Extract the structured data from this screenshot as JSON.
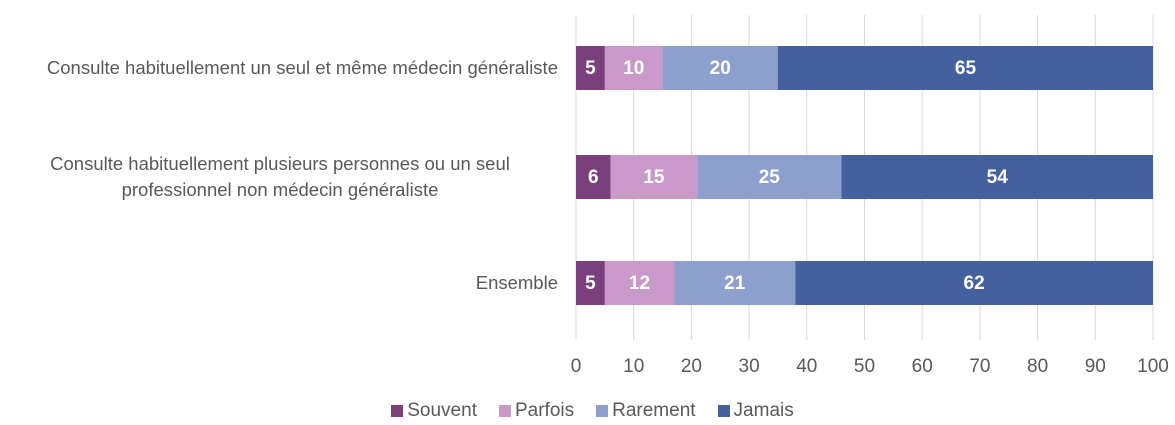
{
  "chart_data": {
    "type": "stacked_barh",
    "categories": [
      "Consulte habituellement un seul et même médecin généraliste",
      "Consulte habituellement plusieurs personnes ou un seul professionnel non médecin généraliste",
      "Ensemble"
    ],
    "series": [
      {
        "name": "Souvent",
        "color": "#7b3f7b",
        "values": [
          5,
          6,
          5
        ]
      },
      {
        "name": "Parfois",
        "color": "#c99ac9",
        "values": [
          10,
          15,
          12
        ]
      },
      {
        "name": "Rarement",
        "color": "#8d9fcd",
        "values": [
          20,
          25,
          21
        ]
      },
      {
        "name": "Jamais",
        "color": "#45609e",
        "values": [
          65,
          54,
          62
        ]
      }
    ],
    "xlim": [
      0,
      100
    ],
    "xticks": [
      0,
      10,
      20,
      30,
      40,
      50,
      60,
      70,
      80,
      90,
      100
    ],
    "grid": true
  }
}
